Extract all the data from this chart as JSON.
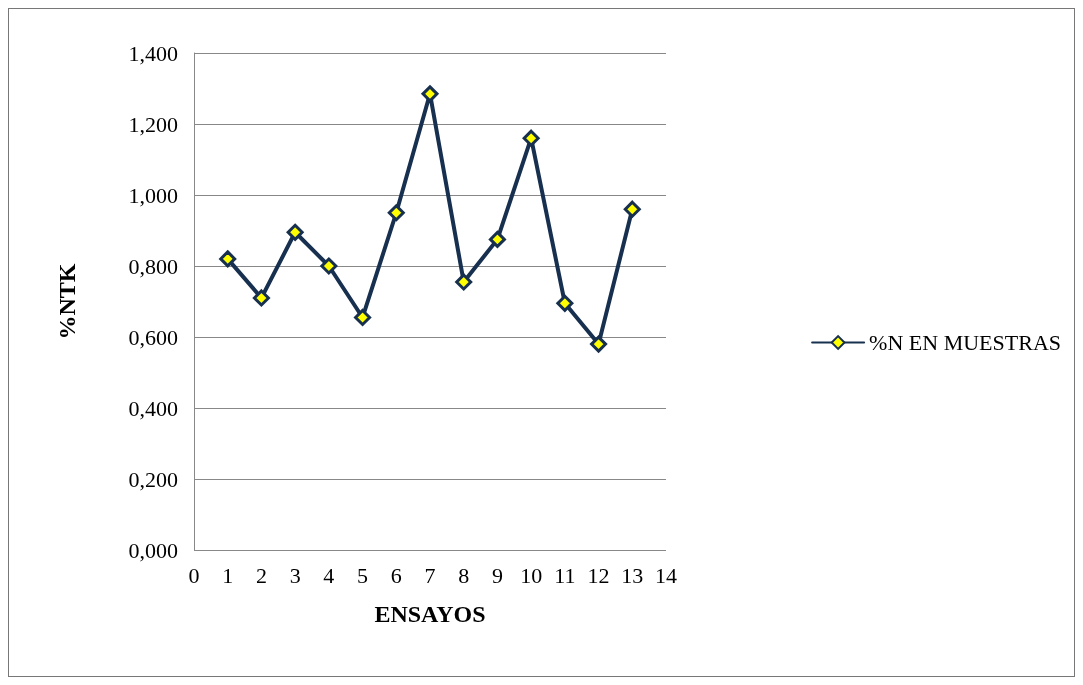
{
  "chart_data": {
    "type": "line",
    "xlabel": "ENSAYOS",
    "ylabel": "%NTK",
    "x": [
      1,
      2,
      3,
      4,
      5,
      6,
      7,
      8,
      9,
      10,
      11,
      12,
      13
    ],
    "series": [
      {
        "name": "%N EN MUESTRAS",
        "color": "#17304f",
        "values": [
          0.82,
          0.71,
          0.895,
          0.8,
          0.655,
          0.95,
          1.285,
          0.755,
          0.875,
          1.16,
          0.695,
          0.58,
          0.96
        ]
      }
    ],
    "xlim": [
      0,
      14
    ],
    "xticks": [
      0,
      1,
      2,
      3,
      4,
      5,
      6,
      7,
      8,
      9,
      10,
      11,
      12,
      13,
      14
    ],
    "ylim": [
      0,
      1.4
    ],
    "yticks": [
      {
        "value": 0,
        "label": "0,000"
      },
      {
        "value": 0.2,
        "label": "0,200"
      },
      {
        "value": 0.4,
        "label": "0,400"
      },
      {
        "value": 0.6,
        "label": "0,600"
      },
      {
        "value": 0.8,
        "label": "0,800"
      },
      {
        "value": 1,
        "label": "1,000"
      },
      {
        "value": 1.2,
        "label": "1,200"
      },
      {
        "value": 1.4,
        "label": "1,400"
      }
    ],
    "grid": "y",
    "legend": "right",
    "marker": "diamond",
    "line_style": "solid"
  }
}
